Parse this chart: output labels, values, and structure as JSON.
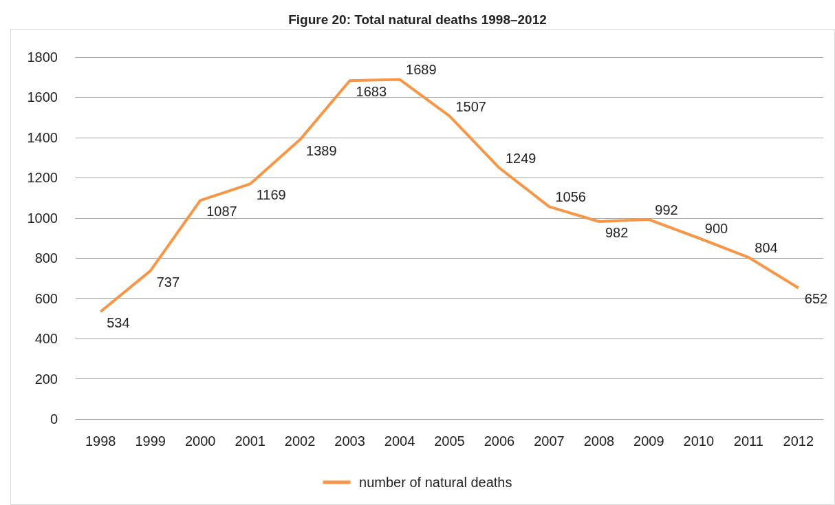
{
  "chart_data": {
    "type": "line",
    "title": "Figure 20: Total natural deaths 1998–2012",
    "categories": [
      "1998",
      "1999",
      "2000",
      "2001",
      "2002",
      "2003",
      "2004",
      "2005",
      "2006",
      "2007",
      "2008",
      "2009",
      "2010",
      "2011",
      "2012"
    ],
    "series": [
      {
        "name": "number of natural deaths",
        "color": "#f79646",
        "values": [
          534,
          737,
          1087,
          1169,
          1389,
          1683,
          1689,
          1507,
          1249,
          1056,
          982,
          992,
          900,
          804,
          652
        ]
      }
    ],
    "ylim": [
      0,
      1800
    ],
    "yticks": [
      0,
      200,
      400,
      600,
      800,
      1000,
      1200,
      1400,
      1600,
      1800
    ],
    "grid": "y",
    "legend": "bottom",
    "data_labels": true,
    "marker": "none",
    "line_style": "solid"
  }
}
